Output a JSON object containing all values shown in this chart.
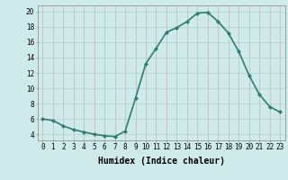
{
  "x": [
    0,
    1,
    2,
    3,
    4,
    5,
    6,
    7,
    8,
    9,
    10,
    11,
    12,
    13,
    14,
    15,
    16,
    17,
    18,
    19,
    20,
    21,
    22,
    23
  ],
  "y": [
    6.0,
    5.8,
    5.1,
    4.6,
    4.3,
    4.0,
    3.8,
    3.7,
    4.4,
    8.7,
    13.2,
    15.2,
    17.3,
    17.9,
    18.7,
    19.8,
    19.9,
    18.7,
    17.2,
    14.8,
    11.7,
    9.2,
    7.6,
    6.9
  ],
  "line_color": "#2e7d6e",
  "marker": "D",
  "marker_size": 2.0,
  "bg_color": "#ceeaea",
  "grid_color": "#b8d4d4",
  "xlabel": "Humidex (Indice chaleur)",
  "xlabel_fontsize": 7,
  "yticks": [
    4,
    6,
    8,
    10,
    12,
    14,
    16,
    18,
    20
  ],
  "ytick_labels": [
    "4",
    "6",
    "8",
    "10",
    "12",
    "14",
    "16",
    "18",
    "20"
  ],
  "ylim": [
    3.2,
    20.8
  ],
  "xlim": [
    -0.5,
    23.5
  ],
  "tick_fontsize": 5.5,
  "linewidth": 1.2
}
